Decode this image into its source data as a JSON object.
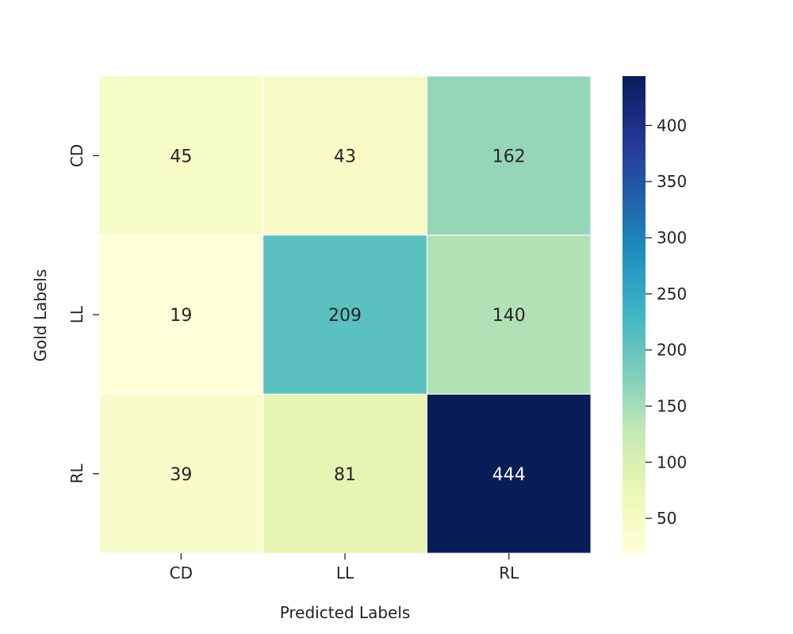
{
  "chart_data": {
    "type": "heatmap",
    "title": "",
    "xlabel": "Predicted Labels",
    "ylabel": "Gold Labels",
    "x_categories": [
      "CD",
      "LL",
      "RL"
    ],
    "y_categories": [
      "CD",
      "LL",
      "RL"
    ],
    "values": [
      [
        45,
        43,
        162
      ],
      [
        19,
        209,
        140
      ],
      [
        39,
        81,
        444
      ]
    ],
    "colormap": "YlGnBu",
    "colorbar": {
      "range": [
        19,
        444
      ],
      "ticks": [
        50,
        100,
        150,
        200,
        250,
        300,
        350,
        400
      ]
    }
  }
}
